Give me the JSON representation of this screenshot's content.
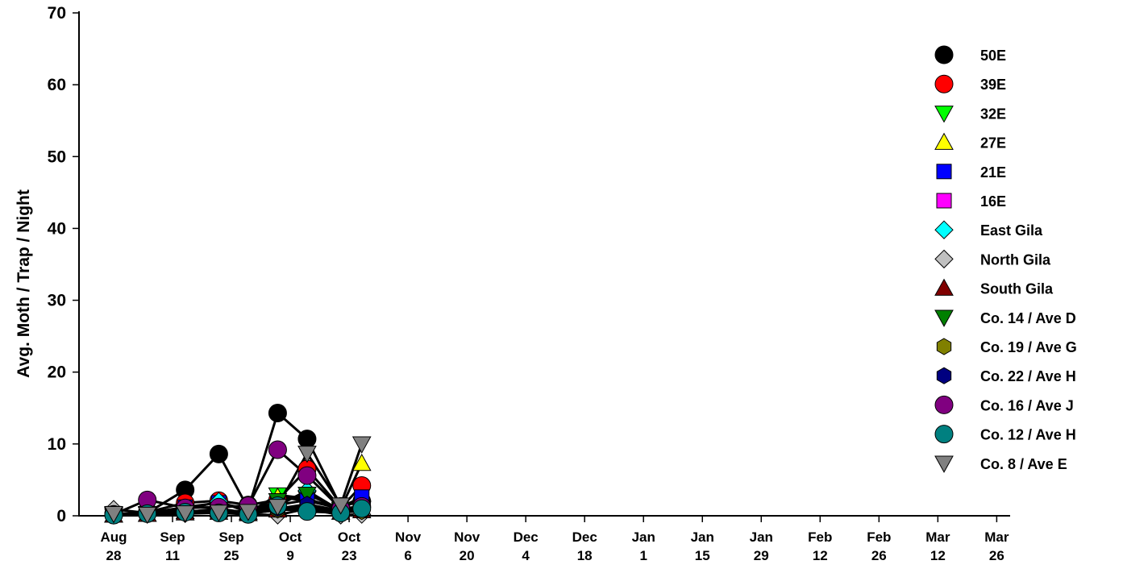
{
  "chart_data": {
    "type": "line",
    "ylabel": "Avg. Moth / Trap / Night",
    "ylim": [
      0,
      70
    ],
    "yticks": [
      "0",
      "10",
      "20",
      "30",
      "40",
      "50",
      "60",
      "70"
    ],
    "xticks": [
      {
        "date": "Aug 28",
        "line1": "Aug",
        "line2": "28"
      },
      {
        "date": "Sep 11",
        "line1": "Sep",
        "line2": "11"
      },
      {
        "date": "Sep 25",
        "line1": "Sep",
        "line2": "25"
      },
      {
        "date": "Oct 9",
        "line1": "Oct",
        "line2": "9"
      },
      {
        "date": "Oct 23",
        "line1": "Oct",
        "line2": "23"
      },
      {
        "date": "Nov 6",
        "line1": "Nov",
        "line2": "6"
      },
      {
        "date": "Nov 20",
        "line1": "Nov",
        "line2": "20"
      },
      {
        "date": "Dec 4",
        "line1": "Dec",
        "line2": "4"
      },
      {
        "date": "Dec 18",
        "line1": "Dec",
        "line2": "18"
      },
      {
        "date": "Jan 1",
        "line1": "Jan",
        "line2": "1"
      },
      {
        "date": "Jan 15",
        "line1": "Jan",
        "line2": "15"
      },
      {
        "date": "Jan 29",
        "line1": "Jan",
        "line2": "29"
      },
      {
        "date": "Feb 12",
        "line1": "Feb",
        "line2": "12"
      },
      {
        "date": "Feb 26",
        "line1": "Feb",
        "line2": "26"
      },
      {
        "date": "Mar 12",
        "line1": "Mar",
        "line2": "12"
      },
      {
        "date": "Mar 26",
        "line1": "Mar",
        "line2": "26"
      }
    ],
    "x": [
      "Aug 28",
      "Sep 5",
      "Sep 14",
      "Sep 22",
      "Sep 29",
      "Oct 6",
      "Oct 13",
      "Oct 21",
      "Oct 26"
    ],
    "legend_position": "right",
    "grid": false,
    "series": [
      {
        "name": "50E",
        "marker": "circle",
        "color": "#000000",
        "values": [
          0.3,
          0.4,
          3.6,
          8.6,
          1.0,
          14.3,
          10.7,
          1.3,
          2.0
        ]
      },
      {
        "name": "39E",
        "marker": "circle",
        "color": "#ff0000",
        "values": [
          0.2,
          0.5,
          1.8,
          2.1,
          1.5,
          2.2,
          6.5,
          1.1,
          4.2
        ]
      },
      {
        "name": "32E",
        "marker": "triangle-down",
        "color": "#00ff00",
        "values": [
          0.1,
          0.3,
          0.5,
          1.0,
          0.4,
          2.9,
          2.4,
          0.8,
          1.0
        ]
      },
      {
        "name": "27E",
        "marker": "triangle-up",
        "color": "#ffff00",
        "values": [
          0.1,
          0.2,
          0.6,
          0.8,
          0.5,
          2.6,
          2.1,
          1.0,
          7.3
        ]
      },
      {
        "name": "21E",
        "marker": "square",
        "color": "#0000ff",
        "values": [
          0.2,
          0.4,
          1.2,
          1.8,
          0.9,
          1.5,
          2.2,
          1.2,
          2.6
        ]
      },
      {
        "name": "16E",
        "marker": "square",
        "color": "#ff00ff",
        "values": [
          0.3,
          0.3,
          0.5,
          0.7,
          0.6,
          0.9,
          1.1,
          0.6,
          0.8
        ]
      },
      {
        "name": "East Gila",
        "marker": "diamond",
        "color": "#00ffff",
        "values": [
          0.2,
          0.5,
          0.8,
          2.0,
          0.5,
          1.4,
          3.5,
          0.7,
          1.2
        ]
      },
      {
        "name": "North Gila",
        "marker": "diamond",
        "color": "#c0c0c0",
        "values": [
          0.9,
          0.4,
          0.3,
          0.5,
          0.2,
          0.1,
          1.0,
          0.1,
          0.2
        ]
      },
      {
        "name": "South Gila",
        "marker": "triangle-up",
        "color": "#800000",
        "values": [
          0.1,
          0.2,
          0.4,
          0.5,
          0.3,
          0.8,
          1.4,
          0.5,
          0.7
        ]
      },
      {
        "name": "Co. 14 / Ave D",
        "marker": "triangle-down",
        "color": "#008000",
        "values": [
          0.2,
          0.3,
          0.6,
          0.8,
          0.4,
          2.1,
          3.0,
          0.9,
          1.0
        ]
      },
      {
        "name": "Co. 19 / Ave G",
        "marker": "hexagon",
        "color": "#808000",
        "values": [
          0.1,
          0.2,
          0.3,
          0.4,
          0.3,
          0.8,
          0.9,
          0.5,
          0.6
        ]
      },
      {
        "name": "Co. 22 / Ave H",
        "marker": "hexagon",
        "color": "#000080",
        "values": [
          0.2,
          0.3,
          0.5,
          0.6,
          0.5,
          1.0,
          1.6,
          0.7,
          0.9
        ]
      },
      {
        "name": "Co. 16 / Ave J",
        "marker": "circle",
        "color": "#800080",
        "values": [
          0.2,
          2.2,
          1.1,
          1.2,
          1.4,
          9.2,
          5.6,
          1.0,
          1.3
        ]
      },
      {
        "name": "Co. 12 / Ave H",
        "marker": "circle",
        "color": "#008080",
        "values": [
          0.1,
          0.3,
          0.5,
          0.4,
          0.2,
          1.4,
          0.6,
          0.4,
          1.0
        ]
      },
      {
        "name": "Co. 8 / Ave E",
        "marker": "triangle-down",
        "color": "#808080",
        "values": [
          0.3,
          0.2,
          0.4,
          0.5,
          0.6,
          1.3,
          8.7,
          1.5,
          10.0
        ]
      }
    ]
  }
}
